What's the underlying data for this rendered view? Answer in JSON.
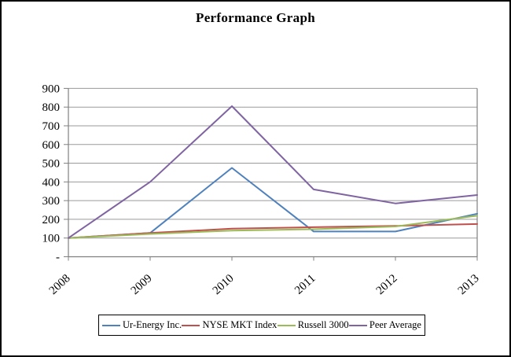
{
  "chart_data": {
    "type": "line",
    "title": "Performance Graph",
    "categories": [
      "2008",
      "2009",
      "2010",
      "2011",
      "2012",
      "2013"
    ],
    "series": [
      {
        "name": "Ur-Energy Inc.",
        "color": "#4F81BD",
        "values": [
          100,
          127,
          475,
          135,
          135,
          230
        ]
      },
      {
        "name": "NYSE MKT Index",
        "color": "#C0504D",
        "values": [
          100,
          127,
          150,
          158,
          165,
          175
        ]
      },
      {
        "name": "Russell 3000",
        "color": "#9BBB59",
        "values": [
          100,
          122,
          140,
          147,
          162,
          220
        ]
      },
      {
        "name": "Peer Average",
        "color": "#8064A2",
        "values": [
          100,
          400,
          805,
          360,
          285,
          330
        ]
      }
    ],
    "ylim": [
      0,
      900
    ],
    "ytick_step": 100,
    "ytick_labels": [
      "-",
      "100",
      "200",
      "300",
      "400",
      "500",
      "600",
      "700",
      "800",
      "900"
    ],
    "xlabel": "",
    "ylabel": "",
    "grid": true,
    "legend_position": "bottom",
    "axis_color": "#808080",
    "grid_color": "#9a9a9a",
    "line_width": 2
  }
}
